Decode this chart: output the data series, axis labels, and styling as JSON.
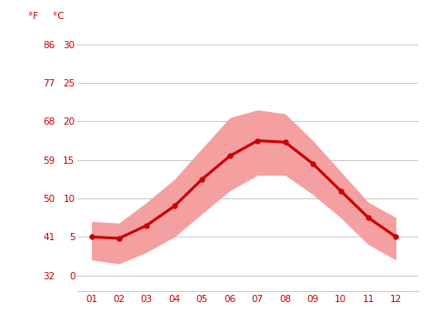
{
  "months": [
    1,
    2,
    3,
    4,
    5,
    6,
    7,
    8,
    9,
    10,
    11,
    12
  ],
  "month_labels": [
    "01",
    "02",
    "03",
    "04",
    "05",
    "06",
    "07",
    "08",
    "09",
    "10",
    "11",
    "12"
  ],
  "avg_temp_c": [
    5.0,
    4.8,
    6.5,
    9.0,
    12.5,
    15.5,
    17.5,
    17.3,
    14.5,
    11.0,
    7.5,
    5.0
  ],
  "max_temp_c": [
    7.0,
    6.8,
    9.5,
    12.5,
    16.5,
    20.5,
    21.5,
    21.0,
    17.5,
    13.5,
    9.5,
    7.5
  ],
  "min_temp_c": [
    2.0,
    1.5,
    3.0,
    5.0,
    8.0,
    11.0,
    13.0,
    13.0,
    10.5,
    7.5,
    4.0,
    2.0
  ],
  "y_ticks_c": [
    0,
    5,
    10,
    15,
    20,
    25,
    30
  ],
  "y_ticks_f": [
    32,
    41,
    50,
    59,
    68,
    77,
    86
  ],
  "ylim_c": [
    -2,
    32
  ],
  "line_color": "#cc0000",
  "band_color": "#f4a0a0",
  "grid_color": "#cccccc",
  "tick_color": "#cc0000",
  "label_f": "°F",
  "label_c": "°C",
  "background_color": "#ffffff"
}
